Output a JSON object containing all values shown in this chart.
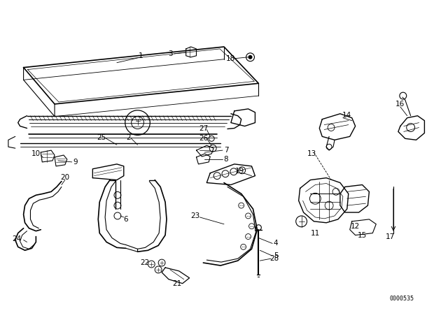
{
  "background_color": "#ffffff",
  "line_color": "#000000",
  "figure_width": 6.4,
  "figure_height": 4.48,
  "dpi": 100,
  "catalog_number": "0000535",
  "label_fontsize": 7.5,
  "small_fontsize": 6.0
}
